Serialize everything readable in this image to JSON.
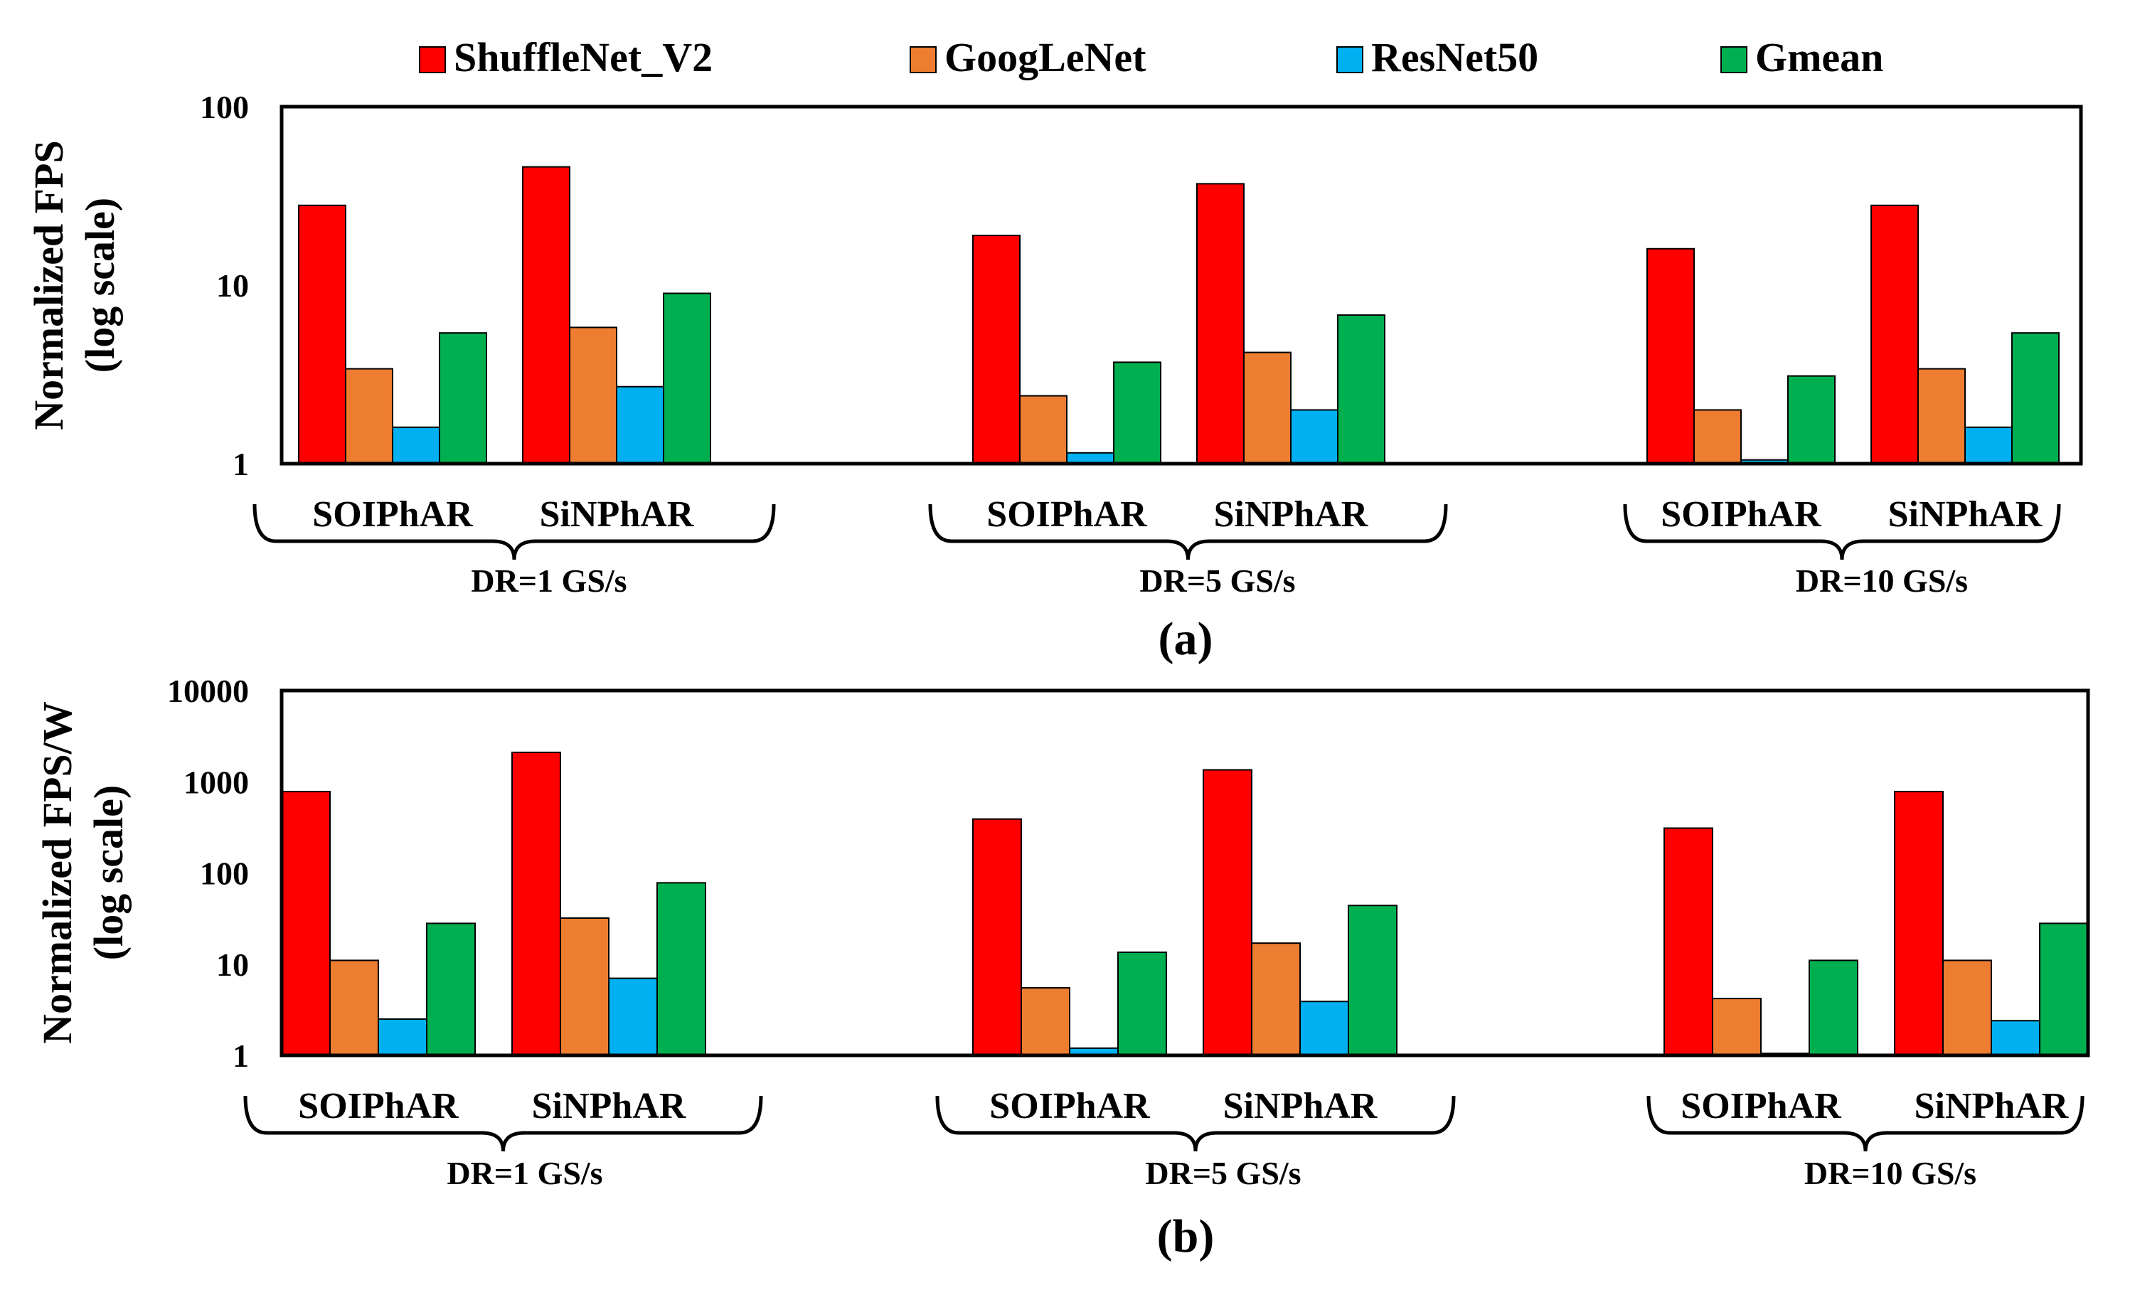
{
  "legend": [
    {
      "name": "ShuffleNet_V2",
      "color": "#FF0000"
    },
    {
      "name": "GoogLeNet",
      "color": "#ED7D31"
    },
    {
      "name": "ResNet50",
      "color": "#00B0F0"
    },
    {
      "name": "Gmean",
      "color": "#00B050"
    }
  ],
  "chart_data": [
    {
      "type": "bar",
      "panel_label": "(a)",
      "ylabel_line1": "Normalized FPS",
      "ylabel_line2": "(log scale)",
      "yscale": "log",
      "ylim": [
        1,
        100
      ],
      "yticks": [
        "1",
        "10",
        "100"
      ],
      "groups": [
        {
          "label": "DR=1 GS/s",
          "subgroups": [
            "SOIPhAR",
            "SiNPhAR"
          ]
        },
        {
          "label": "DR=5 GS/s",
          "subgroups": [
            "SOIPhAR",
            "SiNPhAR"
          ]
        },
        {
          "label": "DR=10 GS/s",
          "subgroups": [
            "SOIPhAR",
            "SiNPhAR"
          ]
        }
      ],
      "series": [
        {
          "name": "ShuffleNet_V2",
          "values": [
            28,
            46,
            19,
            37,
            16,
            28
          ]
        },
        {
          "name": "GoogLeNet",
          "values": [
            3.4,
            5.8,
            2.4,
            4.2,
            2.0,
            3.4
          ]
        },
        {
          "name": "ResNet50",
          "values": [
            1.6,
            2.7,
            1.15,
            2.0,
            1.05,
            1.6
          ]
        },
        {
          "name": "Gmean",
          "values": [
            5.4,
            9.0,
            3.7,
            6.8,
            3.1,
            5.4
          ]
        }
      ]
    },
    {
      "type": "bar",
      "panel_label": "(b)",
      "ylabel_line1": "Normalized FPS/W",
      "ylabel_line2": "(log scale)",
      "yscale": "log",
      "ylim": [
        1,
        10000
      ],
      "yticks": [
        "1",
        "10",
        "100",
        "1000",
        "10000"
      ],
      "groups": [
        {
          "label": "DR=1 GS/s",
          "subgroups": [
            "SOIPhAR",
            "SiNPhAR"
          ]
        },
        {
          "label": "DR=5 GS/s",
          "subgroups": [
            "SOIPhAR",
            "SiNPhAR"
          ]
        },
        {
          "label": "DR=10 GS/s",
          "subgroups": [
            "SOIPhAR",
            "SiNPhAR"
          ]
        }
      ],
      "series": [
        {
          "name": "ShuffleNet_V2",
          "values": [
            780,
            2100,
            390,
            1350,
            310,
            780
          ]
        },
        {
          "name": "GoogLeNet",
          "values": [
            11,
            32,
            5.5,
            17,
            4.2,
            11
          ]
        },
        {
          "name": "ResNet50",
          "values": [
            2.5,
            7.0,
            1.2,
            3.9,
            1.05,
            2.4
          ]
        },
        {
          "name": "Gmean",
          "values": [
            28,
            78,
            13.5,
            44,
            11,
            28
          ]
        }
      ]
    }
  ]
}
